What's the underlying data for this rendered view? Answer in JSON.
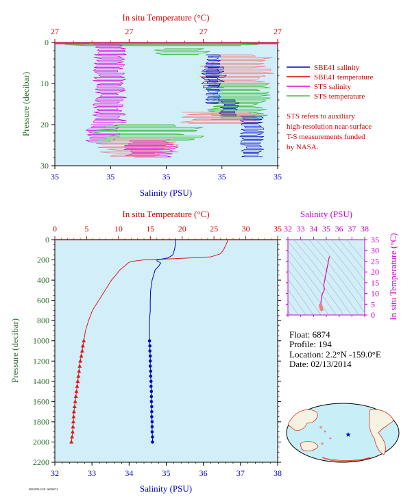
{
  "chart_data": [
    {
      "type": "line",
      "title": "",
      "top_axis": {
        "label": "In situ Temperature (°C)",
        "ticks": [
          "27",
          "27",
          "27",
          "27"
        ],
        "color": "#d40000"
      },
      "bottom_axis": {
        "label": "Salinity (PSU)",
        "ticks": [
          "35",
          "35",
          "35",
          "35",
          "35"
        ],
        "color": "#0000c8"
      },
      "left_axis": {
        "label": "Pressure (decibar)",
        "ticks": [
          "0",
          "10",
          "20",
          "30"
        ],
        "range": [
          0,
          30
        ],
        "inverted": true
      },
      "legend": {
        "placement": "right",
        "entries": [
          {
            "name": "SBE41 salinity",
            "color": "#0000c8"
          },
          {
            "name": "SBE41 temperature",
            "color": "#d40000"
          },
          {
            "name": "STS salinity",
            "color": "#e000e0"
          },
          {
            "name": "STS temperature",
            "color": "#40c040"
          }
        ]
      },
      "note": [
        "STS refers to auxiliary",
        "high-resolution near-surface",
        "T-S measurements funded",
        "by NASA."
      ]
    },
    {
      "type": "line",
      "top_axis": {
        "label": "In situ Temperature (°C)",
        "ticks": [
          "0",
          "5",
          "10",
          "15",
          "20",
          "25",
          "30",
          "35"
        ],
        "range": [
          0,
          35
        ]
      },
      "bottom_axis": {
        "label": "Salinity (PSU)",
        "ticks": [
          "32",
          "33",
          "34",
          "35",
          "36",
          "37",
          "38"
        ],
        "range": [
          32,
          38
        ]
      },
      "left_axis": {
        "label": "Pressure (decibar)",
        "ticks": [
          "0",
          "200",
          "400",
          "600",
          "800",
          "1000",
          "1200",
          "1400",
          "1600",
          "1800",
          "2000",
          "2200"
        ],
        "range": [
          0,
          2200
        ],
        "inverted": true
      },
      "series": [
        {
          "name": "temperature",
          "color": "#e01818",
          "marker": "triangle",
          "pressure": [
            0,
            20,
            60,
            100,
            140,
            170,
            185,
            200,
            215,
            230,
            260,
            300,
            350,
            400,
            450,
            500,
            550,
            600,
            650,
            700,
            800,
            900,
            1000,
            1050,
            1100,
            1150,
            1200,
            1250,
            1300,
            1350,
            1400,
            1450,
            1500,
            1550,
            1600,
            1650,
            1700,
            1750,
            1800,
            1850,
            1900,
            1950,
            2000
          ],
          "values": [
            27.2,
            27.1,
            26.8,
            26.5,
            26.0,
            24.5,
            20.0,
            14.0,
            12.0,
            11.5,
            11.0,
            10.2,
            9.6,
            8.9,
            8.4,
            7.9,
            7.4,
            6.9,
            6.4,
            5.9,
            5.3,
            4.8,
            4.55,
            4.4,
            4.3,
            4.15,
            4.0,
            3.9,
            3.8,
            3.7,
            3.6,
            3.5,
            3.4,
            3.3,
            3.2,
            3.1,
            3.0,
            2.95,
            2.9,
            2.85,
            2.8,
            2.7,
            2.6
          ],
          "markers_from_pressure": 1000
        },
        {
          "name": "salinity",
          "color": "#0000c8",
          "marker": "circle",
          "pressure": [
            0,
            50,
            100,
            150,
            180,
            200,
            210,
            230,
            260,
            300,
            400,
            500,
            600,
            700,
            800,
            900,
            1000,
            1050,
            1100,
            1150,
            1200,
            1250,
            1300,
            1350,
            1400,
            1450,
            1500,
            1550,
            1600,
            1650,
            1700,
            1750,
            1800,
            1850,
            1900,
            1950,
            2000
          ],
          "values": [
            35.25,
            35.25,
            35.22,
            35.18,
            35.05,
            34.75,
            34.75,
            34.85,
            34.8,
            34.7,
            34.62,
            34.58,
            34.57,
            34.57,
            34.55,
            34.55,
            34.55,
            34.56,
            34.56,
            34.57,
            34.57,
            34.57,
            34.58,
            34.58,
            34.59,
            34.59,
            34.6,
            34.6,
            34.6,
            34.61,
            34.61,
            34.61,
            34.62,
            34.62,
            34.62,
            34.63,
            34.63
          ],
          "markers_from_pressure": 1000
        }
      ]
    },
    {
      "type": "scatter",
      "top_axis": {
        "label": "Salinity (PSU)",
        "ticks": [
          "32",
          "33",
          "34",
          "35",
          "36",
          "37",
          "38"
        ],
        "range": [
          32,
          38
        ]
      },
      "right_axis": {
        "label": "In situ Temperature (°C)",
        "ticks": [
          "0",
          "5",
          "10",
          "15",
          "20",
          "25",
          "30",
          "35"
        ],
        "range": [
          0,
          35
        ]
      },
      "series": [
        {
          "name": "T-S",
          "color": "#e000a0",
          "x": [
            35.25,
            35.2,
            35.0,
            34.8,
            34.85,
            34.8,
            34.7,
            34.65,
            34.62,
            34.6,
            34.58,
            34.57,
            34.56
          ],
          "y": [
            27.2,
            26.0,
            20.0,
            14.0,
            12.0,
            11.0,
            10.0,
            9.0,
            8.0,
            7.0,
            6.0,
            5.0,
            4.5
          ]
        },
        {
          "name": "T-S deep",
          "color": "#f08080",
          "x": [
            34.55,
            34.57,
            34.59,
            34.61,
            34.63
          ],
          "y": [
            4.5,
            4.0,
            3.5,
            3.0,
            2.6
          ]
        }
      ]
    }
  ],
  "info": {
    "float": "Float:  6874",
    "profile": "Profile:  194",
    "location": "Location:  2.2°N  -159.0°E",
    "date": "Date:  02/13/2014"
  },
  "footer": {
    "code": "F0020D0A21F: 00000074"
  },
  "colors": {
    "plot_bg": "#d2eef8",
    "red": "#d40000",
    "blue": "#0000c8",
    "magenta": "#cc00cc",
    "green_text": "#2e6a2e"
  }
}
